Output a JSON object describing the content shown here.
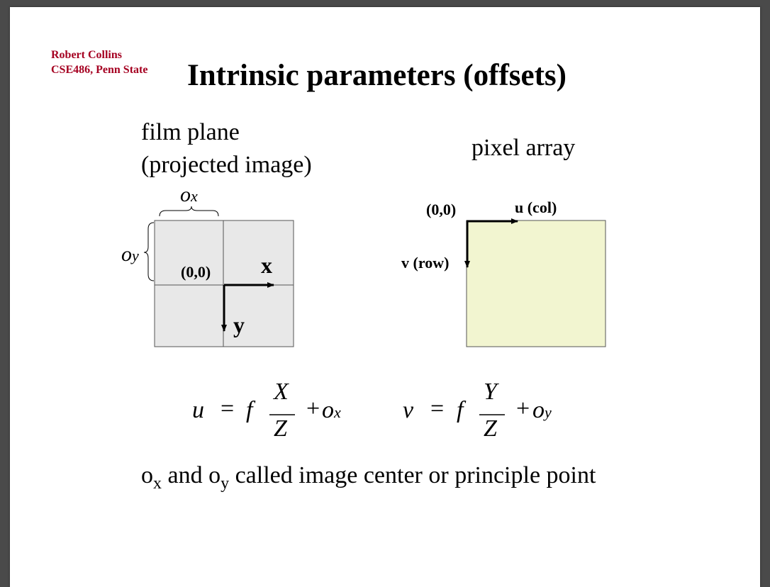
{
  "author": {
    "name": "Robert Collins",
    "affiliation": "CSE486, Penn State"
  },
  "title": "Intrinsic parameters (offsets)",
  "film_plane": {
    "label_line1": "film plane",
    "label_line2": "(projected image)",
    "ox_label": "o",
    "ox_sub": "x",
    "oy_label": "o",
    "oy_sub": "y",
    "origin": "(0,0)",
    "x_axis": "x",
    "y_axis": "y",
    "fill_color": "#e8e8e8"
  },
  "pixel_array": {
    "label": "pixel array",
    "origin": "(0,0)",
    "u_axis": "u (col)",
    "v_axis": "v (row)",
    "fill_color": "#f2f5d0"
  },
  "equations": {
    "u_lhs": "u",
    "u_f": "f",
    "u_num": "X",
    "u_den": "Z",
    "u_plus": "+",
    "u_o": "o",
    "u_o_sub": "x",
    "v_lhs": "v",
    "v_f": "f",
    "v_num": "Y",
    "v_den": "Z",
    "v_plus": "+",
    "v_o": "o",
    "v_o_sub": "y",
    "equals": "="
  },
  "caption": {
    "o1": "o",
    "o1_sub": "x",
    "and": " and ",
    "o2": "o",
    "o2_sub": "y",
    "rest": " called image center or principle point"
  }
}
